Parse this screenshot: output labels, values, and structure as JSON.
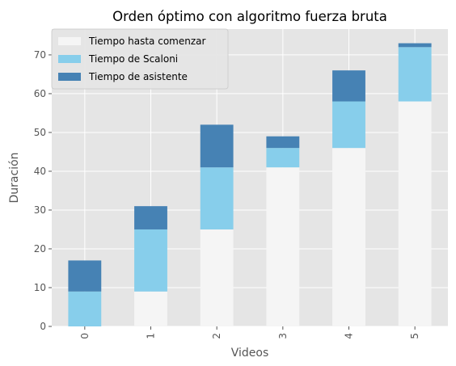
{
  "chart_data": {
    "type": "bar",
    "stacked": true,
    "title": "Orden óptimo con algoritmo fuerza bruta",
    "xlabel": "Videos",
    "ylabel": "Duración",
    "categories": [
      "0",
      "1",
      "2",
      "3",
      "4",
      "5"
    ],
    "series": [
      {
        "name": "Tiempo hasta comenzar",
        "color": "#f5f5f5",
        "values": [
          0,
          9,
          25,
          41,
          46,
          58
        ]
      },
      {
        "name": "Tiempo de Scaloni",
        "color": "#87ceeb",
        "values": [
          9,
          16,
          16,
          5,
          12,
          14
        ]
      },
      {
        "name": "Tiempo de asistente",
        "color": "#4682b4",
        "values": [
          8,
          6,
          11,
          3,
          8,
          1
        ]
      }
    ],
    "ylim": [
      0,
      76.65
    ],
    "yticks": [
      0,
      10,
      20,
      30,
      40,
      50,
      60,
      70
    ],
    "grid": true,
    "legend_position": "top-left",
    "background": "#e5e5e5"
  }
}
